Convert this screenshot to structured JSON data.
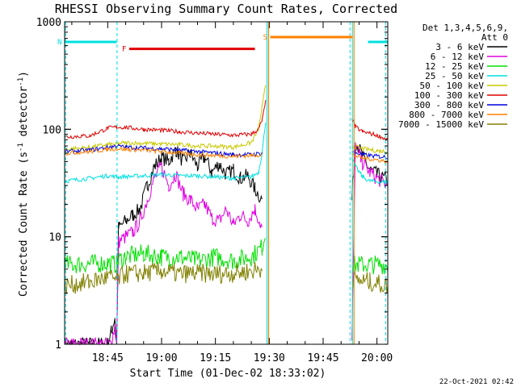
{
  "chart_data": {
    "type": "line",
    "title": "RHESSI Observing Summary Count Rates, Corrected",
    "xlabel": "Start Time (01-Dec-02 18:33:02)",
    "ylabel_main": "Corrected Count Rate (s",
    "ylabel_sup1": "-1",
    "ylabel_mid": " detector",
    "ylabel_sup2": "-1",
    "ylabel_end": ")",
    "yscale": "log",
    "ylim": [
      1,
      1000
    ],
    "xlim_min": [
      33,
      123
    ],
    "x_ticks": [
      {
        "label": "18:45",
        "min": 45
      },
      {
        "label": "19:00",
        "min": 60
      },
      {
        "label": "19:15",
        "min": 75
      },
      {
        "label": "19:30",
        "min": 90
      },
      {
        "label": "19:45",
        "min": 105
      },
      {
        "label": "20:00",
        "min": 120
      }
    ],
    "y_ticks": [
      {
        "label": "1",
        "value": 1
      },
      {
        "label": "10",
        "value": 10
      },
      {
        "label": "100",
        "value": 100
      },
      {
        "label": "1000",
        "value": 1000
      }
    ],
    "legend": {
      "header": [
        "Det 1,3,4,5,6,9,",
        "Att 0"
      ],
      "entries": [
        {
          "label": "3 - 6 keV",
          "color": "#000000"
        },
        {
          "label": "6 - 12 keV",
          "color": "#e000e0"
        },
        {
          "label": "12 - 25 keV",
          "color": "#00e000"
        },
        {
          "label": "25 - 50 keV",
          "color": "#00e0e0"
        },
        {
          "label": "50 - 100 keV",
          "color": "#c8c800"
        },
        {
          "label": "100 - 300 keV",
          "color": "#e00000"
        },
        {
          "label": "300 - 800 keV",
          "color": "#0000e0"
        },
        {
          "label": "800 - 7000 keV",
          "color": "#ff8000"
        },
        {
          "label": "7000 - 15000 keV",
          "color": "#808000"
        }
      ]
    },
    "flags": [
      {
        "code": "N",
        "color": "#00e0e0",
        "segments": [
          [
            33,
            47.5
          ],
          [
            117.5,
            123
          ]
        ],
        "level": 650
      },
      {
        "code": "F",
        "color": "#e00000",
        "segments": [
          [
            51,
            86
          ]
        ],
        "level": 560
      },
      {
        "code": "S",
        "color": "#ff8000",
        "segments": [
          [
            90.3,
            113.2
          ]
        ],
        "level": 720
      }
    ],
    "night_lines_min": [
      33.3,
      47.6,
      112.5,
      122.4
    ],
    "saa_lines_min": [
      89.8,
      113.6
    ],
    "gap_min": [
      90,
      112.5
    ],
    "series": [
      {
        "name": "3 - 6 keV",
        "color": "#000000",
        "points": [
          [
            33,
            1
          ],
          [
            45,
            1
          ],
          [
            46,
            1.3
          ],
          [
            47,
            1.8
          ],
          [
            47.5,
            1
          ],
          [
            48,
            12
          ],
          [
            50,
            14
          ],
          [
            52,
            16
          ],
          [
            54,
            18
          ],
          [
            56,
            30
          ],
          [
            58,
            45
          ],
          [
            60,
            55
          ],
          [
            62,
            50
          ],
          [
            64,
            65
          ],
          [
            66,
            50
          ],
          [
            68,
            60
          ],
          [
            70,
            45
          ],
          [
            72,
            55
          ],
          [
            74,
            40
          ],
          [
            76,
            48
          ],
          [
            78,
            38
          ],
          [
            80,
            42
          ],
          [
            82,
            35
          ],
          [
            84,
            37
          ],
          [
            86,
            28
          ],
          [
            88,
            22
          ],
          [
            113,
            22
          ],
          [
            114,
            80
          ],
          [
            116,
            55
          ],
          [
            118,
            42
          ],
          [
            120,
            38
          ],
          [
            123,
            33
          ]
        ]
      },
      {
        "name": "6 - 12 keV",
        "color": "#e000e0",
        "points": [
          [
            33,
            1
          ],
          [
            46,
            1
          ],
          [
            47,
            1.5
          ],
          [
            47.5,
            1
          ],
          [
            48,
            9
          ],
          [
            50,
            10
          ],
          [
            52,
            11
          ],
          [
            54,
            14
          ],
          [
            56,
            22
          ],
          [
            58,
            35
          ],
          [
            60,
            45
          ],
          [
            62,
            30
          ],
          [
            64,
            38
          ],
          [
            66,
            25
          ],
          [
            68,
            22
          ],
          [
            70,
            18
          ],
          [
            72,
            20
          ],
          [
            74,
            15
          ],
          [
            76,
            14
          ],
          [
            78,
            18
          ],
          [
            80,
            13
          ],
          [
            82,
            16
          ],
          [
            84,
            14
          ],
          [
            86,
            18
          ],
          [
            88,
            12
          ],
          [
            113,
            1
          ],
          [
            114,
            70
          ],
          [
            116,
            48
          ],
          [
            118,
            40
          ],
          [
            120,
            35
          ],
          [
            123,
            30
          ]
        ]
      },
      {
        "name": "12 - 25 keV",
        "color": "#00e000",
        "points": [
          [
            33,
            5.5
          ],
          [
            40,
            5.6
          ],
          [
            45,
            5.7
          ],
          [
            47.5,
            5.5
          ],
          [
            48,
            6
          ],
          [
            50,
            6.5
          ],
          [
            55,
            7
          ],
          [
            60,
            6.5
          ],
          [
            65,
            6.5
          ],
          [
            70,
            6
          ],
          [
            75,
            6.5
          ],
          [
            80,
            6
          ],
          [
            85,
            6.5
          ],
          [
            88,
            8
          ],
          [
            89,
            11
          ],
          [
            113,
            5.5
          ],
          [
            118,
            5.5
          ],
          [
            123,
            5.5
          ]
        ]
      },
      {
        "name": "25 - 50 keV",
        "color": "#00e0e0",
        "points": [
          [
            33,
            33
          ],
          [
            40,
            35
          ],
          [
            45,
            37
          ],
          [
            47.5,
            36
          ],
          [
            48,
            36
          ],
          [
            55,
            37
          ],
          [
            60,
            38
          ],
          [
            65,
            37
          ],
          [
            70,
            37
          ],
          [
            75,
            36
          ],
          [
            80,
            35
          ],
          [
            85,
            36
          ],
          [
            87,
            40
          ],
          [
            88,
            60
          ],
          [
            89,
            120
          ],
          [
            113,
            55
          ],
          [
            114,
            45
          ],
          [
            116,
            36
          ],
          [
            118,
            33
          ],
          [
            123,
            32
          ]
        ]
      },
      {
        "name": "50 - 100 keV",
        "color": "#c8c800",
        "points": [
          [
            33,
            65
          ],
          [
            40,
            68
          ],
          [
            45,
            72
          ],
          [
            47.5,
            73
          ],
          [
            50,
            75
          ],
          [
            55,
            74
          ],
          [
            60,
            73
          ],
          [
            65,
            72
          ],
          [
            70,
            70
          ],
          [
            75,
            70
          ],
          [
            80,
            68
          ],
          [
            85,
            75
          ],
          [
            87,
            100
          ],
          [
            88,
            160
          ],
          [
            89,
            260
          ],
          [
            113,
            70
          ],
          [
            116,
            66
          ],
          [
            120,
            63
          ],
          [
            123,
            62
          ]
        ]
      },
      {
        "name": "100 - 300 keV",
        "color": "#e00000",
        "points": [
          [
            33,
            85
          ],
          [
            40,
            87
          ],
          [
            45,
            102
          ],
          [
            47.5,
            105
          ],
          [
            50,
            104
          ],
          [
            55,
            100
          ],
          [
            60,
            98
          ],
          [
            65,
            95
          ],
          [
            70,
            92
          ],
          [
            75,
            90
          ],
          [
            80,
            88
          ],
          [
            85,
            90
          ],
          [
            87,
            100
          ],
          [
            88,
            120
          ],
          [
            89,
            180
          ],
          [
            113,
            130
          ],
          [
            114,
            105
          ],
          [
            116,
            95
          ],
          [
            120,
            88
          ],
          [
            123,
            80
          ]
        ]
      },
      {
        "name": "300 - 800 keV",
        "color": "#0000e0",
        "points": [
          [
            33,
            62
          ],
          [
            40,
            64
          ],
          [
            45,
            68
          ],
          [
            47.5,
            70
          ],
          [
            50,
            68
          ],
          [
            55,
            67
          ],
          [
            60,
            66
          ],
          [
            65,
            64
          ],
          [
            70,
            62
          ],
          [
            75,
            60
          ],
          [
            80,
            58
          ],
          [
            85,
            58
          ],
          [
            88,
            60
          ],
          [
            113,
            62
          ],
          [
            116,
            58
          ],
          [
            120,
            56
          ],
          [
            123,
            55
          ]
        ]
      },
      {
        "name": "800 - 7000 keV",
        "color": "#ff8000",
        "points": [
          [
            33,
            60
          ],
          [
            40,
            62
          ],
          [
            45,
            65
          ],
          [
            47.5,
            66
          ],
          [
            50,
            65
          ],
          [
            55,
            64
          ],
          [
            60,
            62
          ],
          [
            65,
            60
          ],
          [
            70,
            58
          ],
          [
            75,
            57
          ],
          [
            80,
            56
          ],
          [
            85,
            57
          ],
          [
            88,
            58
          ],
          [
            113,
            58
          ],
          [
            116,
            54
          ],
          [
            120,
            52
          ],
          [
            123,
            50
          ]
        ]
      },
      {
        "name": "7000 - 15000 keV",
        "color": "#808000",
        "points": [
          [
            33,
            3.5
          ],
          [
            40,
            3.8
          ],
          [
            45,
            4.2
          ],
          [
            47.5,
            4
          ],
          [
            50,
            4.5
          ],
          [
            55,
            4.6
          ],
          [
            60,
            4.8
          ],
          [
            65,
            4.5
          ],
          [
            70,
            4.6
          ],
          [
            75,
            4.5
          ],
          [
            80,
            4.6
          ],
          [
            85,
            4.8
          ],
          [
            88,
            5
          ],
          [
            113,
            4
          ],
          [
            118,
            3.8
          ],
          [
            123,
            3.5
          ]
        ]
      }
    ]
  },
  "footer": {
    "timestamp": "22-Oct-2021 02:42"
  }
}
